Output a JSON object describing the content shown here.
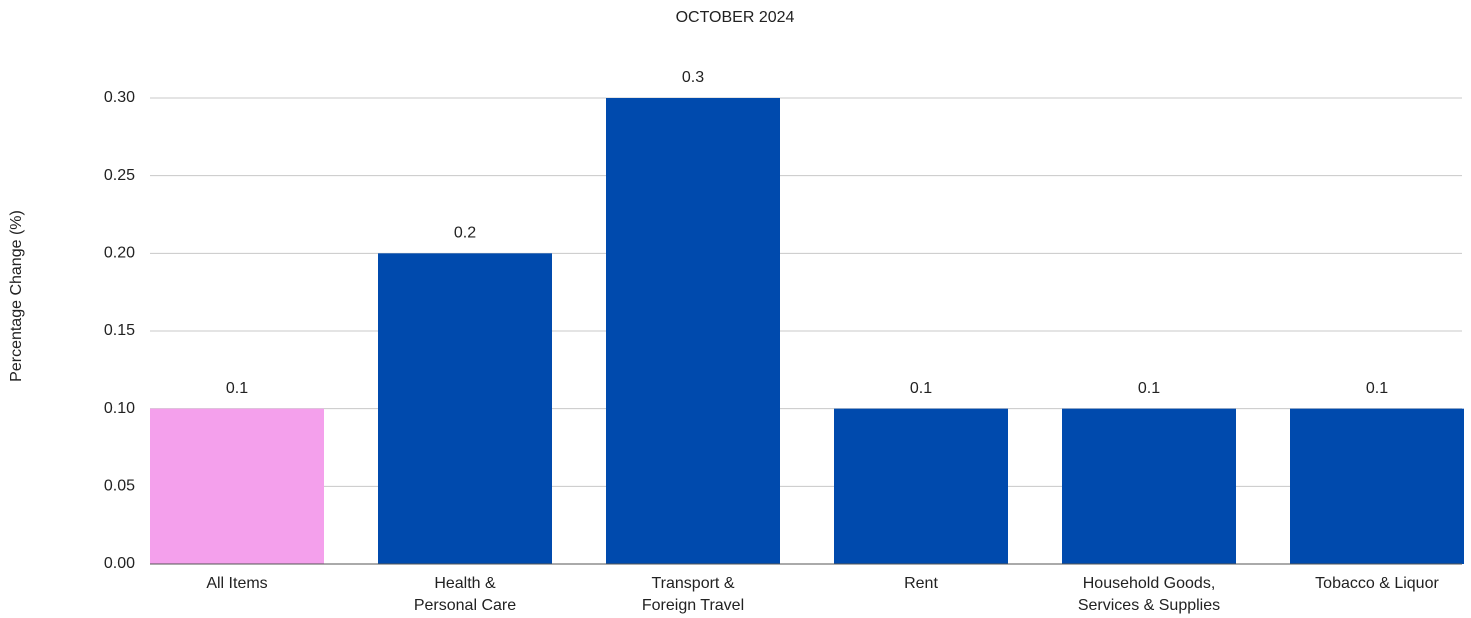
{
  "chart_data": {
    "type": "bar",
    "title": "OCTOBER 2024",
    "y_label": "Percentage Change (%)",
    "categories": [
      "All Items",
      "Health &\nPersonal Care",
      "Transport &\nForeign Travel",
      "Rent",
      "Household Goods,\nServices & Supplies",
      "Tobacco & Liquor"
    ],
    "values": [
      0.1,
      0.2,
      0.3,
      0.1,
      0.1,
      0.1
    ],
    "colors": [
      "#f4a0ec",
      "#004aad",
      "#004aad",
      "#004aad",
      "#004aad",
      "#004aad"
    ],
    "ylim": [
      0,
      0.3
    ],
    "yticks": [
      {
        "value": 0,
        "label": "0.00"
      },
      {
        "value": 0.05,
        "label": "0.05"
      },
      {
        "value": 0.1,
        "label": "0.10"
      },
      {
        "value": 0.15,
        "label": "0.15"
      },
      {
        "value": 0.2,
        "label": "0.20"
      },
      {
        "value": 0.25,
        "label": "0.25"
      },
      {
        "value": 0.3,
        "label": "0.30"
      }
    ],
    "grid": true
  }
}
